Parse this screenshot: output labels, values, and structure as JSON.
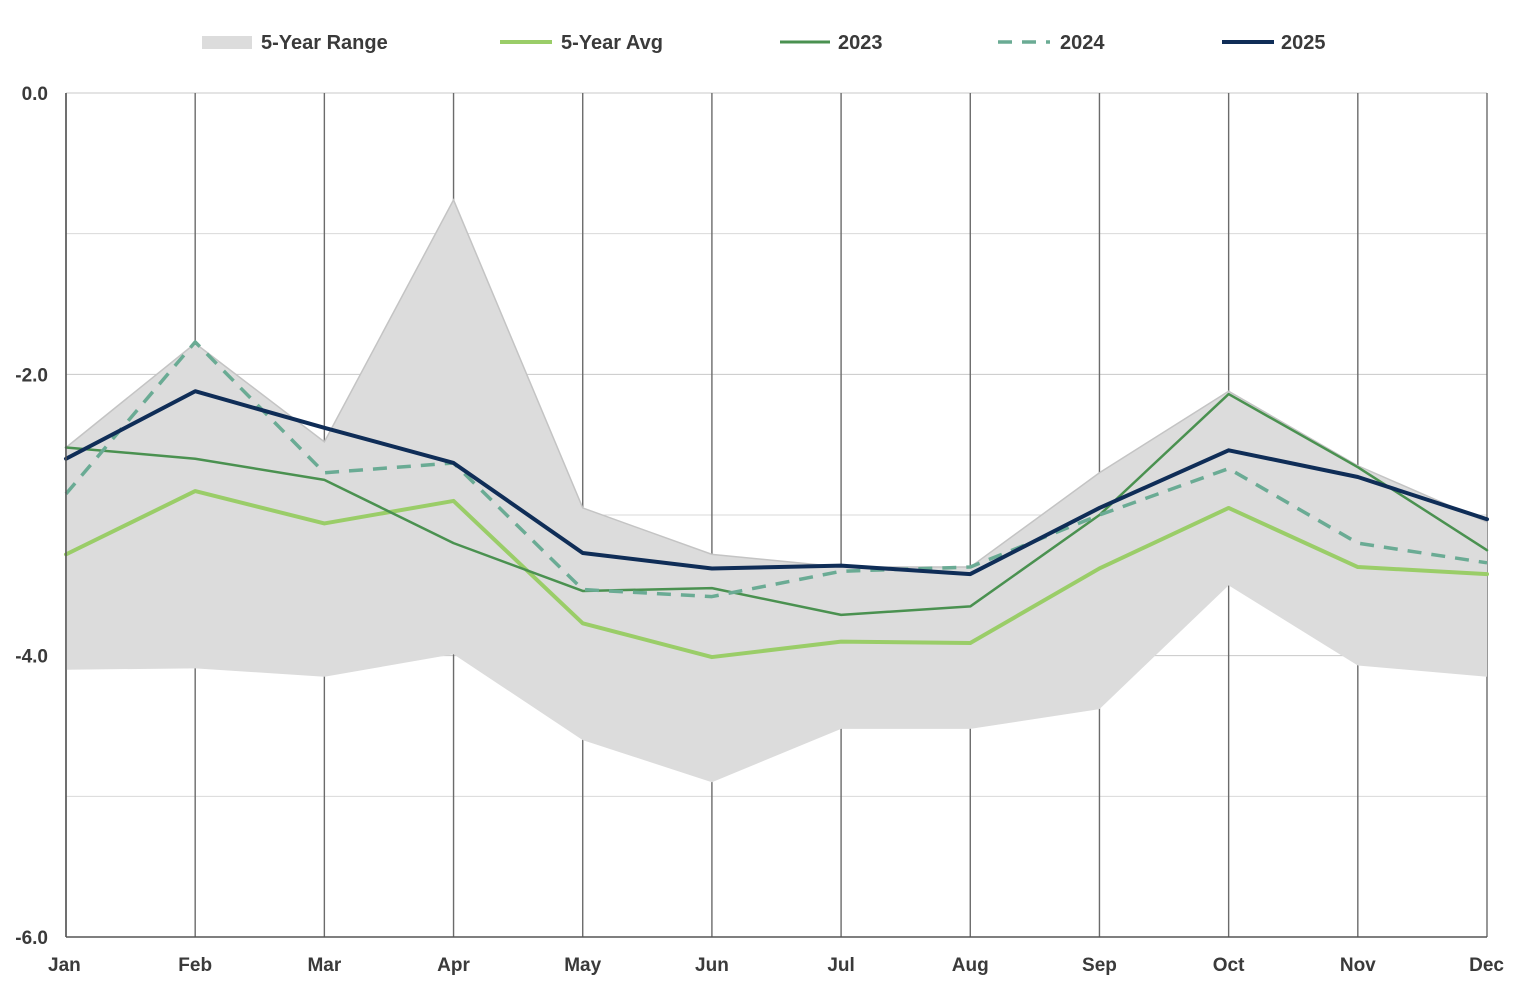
{
  "chart_data": {
    "type": "line",
    "title": "",
    "xlabel": "",
    "ylabel": "",
    "categories": [
      "Jan",
      "Feb",
      "Mar",
      "Apr",
      "May",
      "Jun",
      "Jul",
      "Aug",
      "Sep",
      "Oct",
      "Nov",
      "Dec"
    ],
    "ylim": [
      -6.0,
      0.0
    ],
    "y_ticks": [
      "0.0",
      "-2.0",
      "-4.0",
      "-6.0"
    ],
    "y_tick_values": [
      0.0,
      -2.0,
      -4.0,
      -6.0
    ],
    "grid": true,
    "legend_position": "top",
    "range": {
      "name": "5-Year Range",
      "color": "#dcdcdc",
      "high": [
        -2.52,
        -1.78,
        -2.48,
        -0.76,
        -2.95,
        -3.28,
        -3.37,
        -3.37,
        -2.7,
        -2.12,
        -2.65,
        -3.05
      ],
      "low": [
        -4.1,
        -4.09,
        -4.15,
        -3.99,
        -4.6,
        -4.9,
        -4.52,
        -4.52,
        -4.38,
        -3.5,
        -4.07,
        -4.15
      ]
    },
    "series": [
      {
        "name": "5-Year Avg",
        "color": "#9acd68",
        "width": 4,
        "dash": "",
        "values": [
          -3.28,
          -2.83,
          -3.06,
          -2.9,
          -3.77,
          -4.01,
          -3.9,
          -3.91,
          -3.38,
          -2.95,
          -3.37,
          -3.42
        ]
      },
      {
        "name": "2023",
        "color": "#4a9150",
        "width": 2.5,
        "dash": "",
        "values": [
          -2.52,
          -2.6,
          -2.75,
          -3.2,
          -3.54,
          -3.52,
          -3.71,
          -3.65,
          -3.0,
          -2.14,
          -2.66,
          -3.25
        ]
      },
      {
        "name": "2024",
        "color": "#6aab94",
        "width": 3.5,
        "dash": "14 10",
        "values": [
          -2.85,
          -1.77,
          -2.7,
          -2.63,
          -3.53,
          -3.58,
          -3.4,
          -3.37,
          -3.0,
          -2.67,
          -3.2,
          -3.34
        ]
      },
      {
        "name": "2025",
        "color": "#0f2d57",
        "width": 4,
        "dash": "",
        "values": [
          -2.6,
          -2.12,
          -2.38,
          -2.63,
          -3.27,
          -3.38,
          -3.36,
          -3.42,
          -2.95,
          -2.54,
          -2.73,
          -3.03
        ]
      }
    ]
  }
}
